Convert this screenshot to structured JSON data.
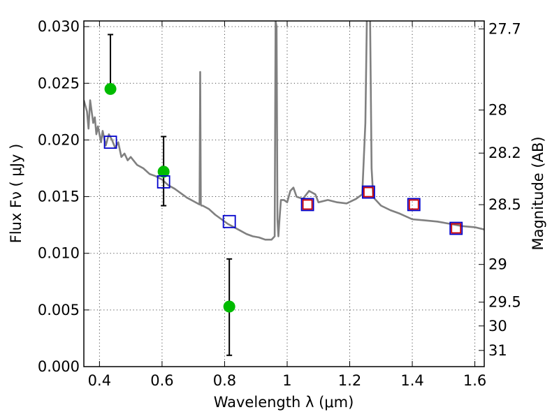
{
  "chart_data": {
    "type": "scatter",
    "title": "",
    "xlabel": "Wavelength  λ (μm)",
    "ylabel": "Flux  Fν  ( μJy )",
    "y2label": "Magnitude (AB)",
    "xlim": [
      0.35,
      1.63
    ],
    "ylim": [
      0.0,
      0.0305
    ],
    "grid": true,
    "x_ticks": [
      0.4,
      0.6,
      0.8,
      1.0,
      1.2,
      1.4,
      1.6
    ],
    "x_tick_labels": [
      "0.4",
      "0.6",
      "0.8",
      "1",
      "1.2",
      "1.4",
      "1.6"
    ],
    "y_ticks": [
      0.0,
      0.005,
      0.01,
      0.015,
      0.02,
      0.025,
      0.03
    ],
    "y_tick_labels": [
      "0.000",
      "0.005",
      "0.010",
      "0.015",
      "0.020",
      "0.025",
      "0.030"
    ],
    "y2_ticks": [
      {
        "label": "27.7",
        "flux": 0.0298
      },
      {
        "label": "28",
        "flux": 0.02264
      },
      {
        "label": "28.2",
        "flux": 0.01884
      },
      {
        "label": "28.5",
        "flux": 0.01429
      },
      {
        "label": "29",
        "flux": 0.009016
      },
      {
        "label": "29.5",
        "flux": 0.005689
      },
      {
        "label": "30",
        "flux": 0.003589
      },
      {
        "label": "31",
        "flux": 0.001429
      }
    ],
    "series": [
      {
        "kind": "line",
        "color": "#808080",
        "x": [
          0.35,
          0.36,
          0.365,
          0.37,
          0.375,
          0.38,
          0.385,
          0.39,
          0.395,
          0.4,
          0.405,
          0.41,
          0.42,
          0.43,
          0.44,
          0.45,
          0.46,
          0.47,
          0.48,
          0.49,
          0.5,
          0.52,
          0.54,
          0.56,
          0.58,
          0.6,
          0.62,
          0.64,
          0.66,
          0.68,
          0.7,
          0.72,
          0.722,
          0.724,
          0.726,
          0.728,
          0.73,
          0.75,
          0.77,
          0.79,
          0.81,
          0.83,
          0.85,
          0.87,
          0.89,
          0.91,
          0.93,
          0.95,
          0.96,
          0.963,
          0.966,
          0.969,
          0.972,
          0.975,
          0.98,
          0.99,
          1.0,
          1.01,
          1.02,
          1.03,
          1.05,
          1.07,
          1.09,
          1.1,
          1.13,
          1.16,
          1.19,
          1.22,
          1.24,
          1.25,
          1.255,
          1.26,
          1.265,
          1.27,
          1.275,
          1.28,
          1.3,
          1.33,
          1.36,
          1.4,
          1.44,
          1.48,
          1.52,
          1.56,
          1.6,
          1.63
        ],
        "values": [
          0.0235,
          0.0225,
          0.021,
          0.0235,
          0.0225,
          0.0215,
          0.022,
          0.0205,
          0.0212,
          0.0205,
          0.0198,
          0.0208,
          0.0195,
          0.0205,
          0.02,
          0.0193,
          0.0198,
          0.0185,
          0.0188,
          0.0182,
          0.0185,
          0.0178,
          0.0175,
          0.017,
          0.0168,
          0.0165,
          0.016,
          0.0157,
          0.0153,
          0.0149,
          0.0146,
          0.0143,
          0.026,
          0.0143,
          0.0142,
          0.0142,
          0.0142,
          0.0139,
          0.0134,
          0.013,
          0.0126,
          0.0123,
          0.012,
          0.0117,
          0.0115,
          0.0114,
          0.0112,
          0.0112,
          0.0115,
          0.0305,
          0.03,
          0.013,
          0.0115,
          0.0128,
          0.0147,
          0.0147,
          0.0145,
          0.0155,
          0.0158,
          0.015,
          0.0148,
          0.0155,
          0.0152,
          0.0145,
          0.0147,
          0.0145,
          0.0144,
          0.0148,
          0.0152,
          0.0215,
          0.031,
          0.031,
          0.031,
          0.0175,
          0.015,
          0.0148,
          0.0142,
          0.0138,
          0.0135,
          0.013,
          0.0129,
          0.0128,
          0.0126,
          0.0124,
          0.0123,
          0.0121
        ]
      },
      {
        "kind": "errorbar",
        "color": "#00bb00",
        "x": [
          0.435,
          0.605,
          0.815
        ],
        "values": [
          0.0245,
          0.0172,
          0.0053
        ],
        "err_low": [
          0.0242,
          0.0142,
          0.001
        ],
        "err_high": [
          0.0293,
          0.0203,
          0.0095
        ]
      },
      {
        "kind": "markers",
        "shape": "square",
        "color": "#0000cc",
        "x": [
          0.435,
          0.605,
          0.815,
          1.065,
          1.26,
          1.405,
          1.54
        ],
        "values": [
          0.0198,
          0.0163,
          0.0128,
          0.0143,
          0.0154,
          0.0143,
          0.0122
        ]
      },
      {
        "kind": "markers",
        "shape": "square",
        "color": "#cc0000",
        "x": [
          1.065,
          1.26,
          1.405,
          1.54
        ],
        "values": [
          0.0143,
          0.0154,
          0.0143,
          0.0122
        ]
      }
    ]
  }
}
